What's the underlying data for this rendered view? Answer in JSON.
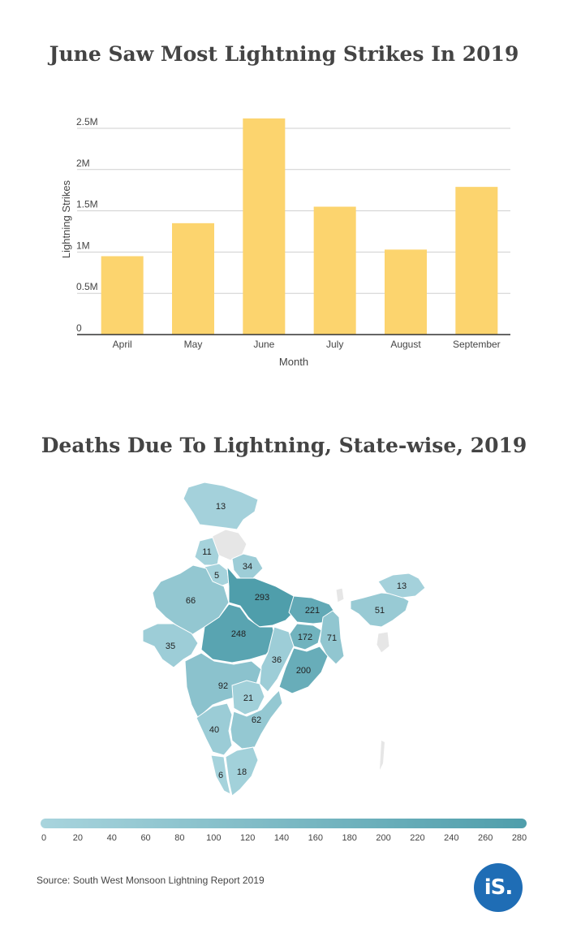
{
  "charts": {
    "bar": {
      "title": "June Saw Most Lightning Strikes In 2019"
    },
    "map": {
      "title": "Deaths Due To Lightning, State-wise, 2019"
    }
  },
  "chart_data": [
    {
      "type": "bar",
      "title": "June Saw Most Lightning Strikes In 2019",
      "categories": [
        "April",
        "May",
        "June",
        "July",
        "August",
        "September"
      ],
      "values": [
        950000,
        1350000,
        2620000,
        1550000,
        1030000,
        1790000
      ],
      "xlabel": "Month",
      "ylabel": "Lightning Strikes",
      "ylim": [
        0,
        2500000
      ],
      "yticks": [
        0,
        500000,
        1000000,
        1500000,
        2000000,
        2500000
      ],
      "ytick_labels": [
        "0",
        "0.5M",
        "1M",
        "1.5M",
        "2M",
        "2.5M"
      ],
      "color": "#fcd46e",
      "grid": true
    },
    {
      "type": "choropleth",
      "title": "Deaths Due To Lightning, State-wise, 2019",
      "regions": [
        {
          "name": "Jammu & Kashmir",
          "value": 13
        },
        {
          "name": "Himachal Pradesh",
          "value": null
        },
        {
          "name": "Punjab",
          "value": 11
        },
        {
          "name": "Haryana",
          "value": 5
        },
        {
          "name": "Uttarakhand",
          "value": 34
        },
        {
          "name": "Rajasthan",
          "value": 66
        },
        {
          "name": "Uttar Pradesh",
          "value": 293
        },
        {
          "name": "Bihar",
          "value": 221
        },
        {
          "name": "Gujarat",
          "value": 35
        },
        {
          "name": "Madhya Pradesh",
          "value": 248
        },
        {
          "name": "Jharkhand",
          "value": 172
        },
        {
          "name": "West Bengal",
          "value": 71
        },
        {
          "name": "Chhattisgarh",
          "value": 36
        },
        {
          "name": "Odisha",
          "value": 200
        },
        {
          "name": "Maharashtra",
          "value": 92
        },
        {
          "name": "Telangana",
          "value": 21
        },
        {
          "name": "Karnataka",
          "value": 40
        },
        {
          "name": "Andhra Pradesh",
          "value": 62
        },
        {
          "name": "Tamil Nadu",
          "value": 18
        },
        {
          "name": "Kerala",
          "value": 6
        },
        {
          "name": "Assam",
          "value": 51
        },
        {
          "name": "Arunachal Pradesh",
          "value": 13
        }
      ],
      "legend": {
        "min": 0,
        "max": 280,
        "ticks": [
          "0",
          "20",
          "40",
          "60",
          "80",
          "100",
          "120",
          "140",
          "160",
          "180",
          "200",
          "220",
          "240",
          "260",
          "280"
        ],
        "color_low": "#a8d4dd",
        "color_high": "#4f9eab",
        "no_data_color": "#e6e6e6"
      }
    }
  ],
  "footer": {
    "source": "Source: South West Monsoon Lightning Report 2019",
    "logo_text": "iS."
  }
}
